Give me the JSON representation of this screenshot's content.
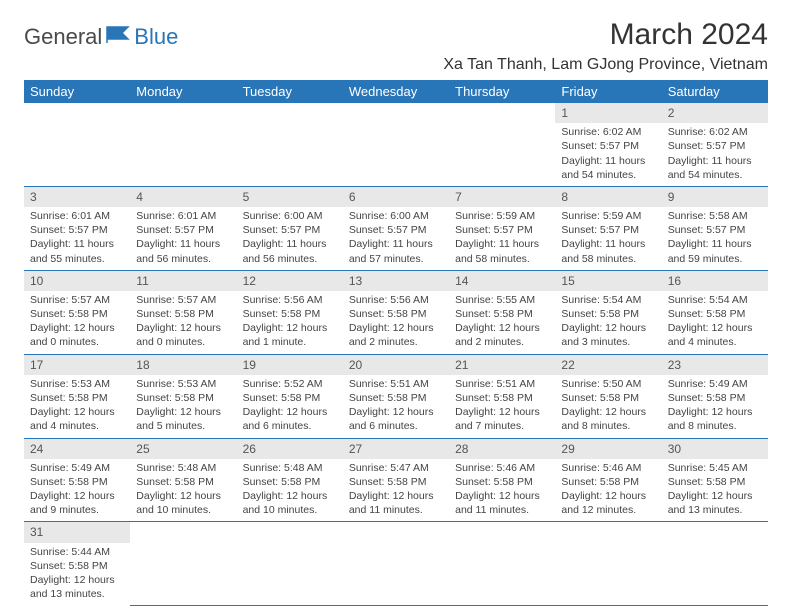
{
  "logo": {
    "general": "General",
    "blue": "Blue"
  },
  "title": "March 2024",
  "location": "Xa Tan Thanh, Lam GJong Province, Vietnam",
  "headers": [
    "Sunday",
    "Monday",
    "Tuesday",
    "Wednesday",
    "Thursday",
    "Friday",
    "Saturday"
  ],
  "colors": {
    "header_bg": "#2876b8",
    "header_text": "#ffffff",
    "daynum_bg": "#e8e8e8",
    "text": "#333333",
    "border": "#2876b8"
  },
  "weeks": [
    [
      null,
      null,
      null,
      null,
      null,
      {
        "n": "1",
        "sr": "Sunrise: 6:02 AM",
        "ss": "Sunset: 5:57 PM",
        "dl": "Daylight: 11 hours and 54 minutes."
      },
      {
        "n": "2",
        "sr": "Sunrise: 6:02 AM",
        "ss": "Sunset: 5:57 PM",
        "dl": "Daylight: 11 hours and 54 minutes."
      }
    ],
    [
      {
        "n": "3",
        "sr": "Sunrise: 6:01 AM",
        "ss": "Sunset: 5:57 PM",
        "dl": "Daylight: 11 hours and 55 minutes."
      },
      {
        "n": "4",
        "sr": "Sunrise: 6:01 AM",
        "ss": "Sunset: 5:57 PM",
        "dl": "Daylight: 11 hours and 56 minutes."
      },
      {
        "n": "5",
        "sr": "Sunrise: 6:00 AM",
        "ss": "Sunset: 5:57 PM",
        "dl": "Daylight: 11 hours and 56 minutes."
      },
      {
        "n": "6",
        "sr": "Sunrise: 6:00 AM",
        "ss": "Sunset: 5:57 PM",
        "dl": "Daylight: 11 hours and 57 minutes."
      },
      {
        "n": "7",
        "sr": "Sunrise: 5:59 AM",
        "ss": "Sunset: 5:57 PM",
        "dl": "Daylight: 11 hours and 58 minutes."
      },
      {
        "n": "8",
        "sr": "Sunrise: 5:59 AM",
        "ss": "Sunset: 5:57 PM",
        "dl": "Daylight: 11 hours and 58 minutes."
      },
      {
        "n": "9",
        "sr": "Sunrise: 5:58 AM",
        "ss": "Sunset: 5:57 PM",
        "dl": "Daylight: 11 hours and 59 minutes."
      }
    ],
    [
      {
        "n": "10",
        "sr": "Sunrise: 5:57 AM",
        "ss": "Sunset: 5:58 PM",
        "dl": "Daylight: 12 hours and 0 minutes."
      },
      {
        "n": "11",
        "sr": "Sunrise: 5:57 AM",
        "ss": "Sunset: 5:58 PM",
        "dl": "Daylight: 12 hours and 0 minutes."
      },
      {
        "n": "12",
        "sr": "Sunrise: 5:56 AM",
        "ss": "Sunset: 5:58 PM",
        "dl": "Daylight: 12 hours and 1 minute."
      },
      {
        "n": "13",
        "sr": "Sunrise: 5:56 AM",
        "ss": "Sunset: 5:58 PM",
        "dl": "Daylight: 12 hours and 2 minutes."
      },
      {
        "n": "14",
        "sr": "Sunrise: 5:55 AM",
        "ss": "Sunset: 5:58 PM",
        "dl": "Daylight: 12 hours and 2 minutes."
      },
      {
        "n": "15",
        "sr": "Sunrise: 5:54 AM",
        "ss": "Sunset: 5:58 PM",
        "dl": "Daylight: 12 hours and 3 minutes."
      },
      {
        "n": "16",
        "sr": "Sunrise: 5:54 AM",
        "ss": "Sunset: 5:58 PM",
        "dl": "Daylight: 12 hours and 4 minutes."
      }
    ],
    [
      {
        "n": "17",
        "sr": "Sunrise: 5:53 AM",
        "ss": "Sunset: 5:58 PM",
        "dl": "Daylight: 12 hours and 4 minutes."
      },
      {
        "n": "18",
        "sr": "Sunrise: 5:53 AM",
        "ss": "Sunset: 5:58 PM",
        "dl": "Daylight: 12 hours and 5 minutes."
      },
      {
        "n": "19",
        "sr": "Sunrise: 5:52 AM",
        "ss": "Sunset: 5:58 PM",
        "dl": "Daylight: 12 hours and 6 minutes."
      },
      {
        "n": "20",
        "sr": "Sunrise: 5:51 AM",
        "ss": "Sunset: 5:58 PM",
        "dl": "Daylight: 12 hours and 6 minutes."
      },
      {
        "n": "21",
        "sr": "Sunrise: 5:51 AM",
        "ss": "Sunset: 5:58 PM",
        "dl": "Daylight: 12 hours and 7 minutes."
      },
      {
        "n": "22",
        "sr": "Sunrise: 5:50 AM",
        "ss": "Sunset: 5:58 PM",
        "dl": "Daylight: 12 hours and 8 minutes."
      },
      {
        "n": "23",
        "sr": "Sunrise: 5:49 AM",
        "ss": "Sunset: 5:58 PM",
        "dl": "Daylight: 12 hours and 8 minutes."
      }
    ],
    [
      {
        "n": "24",
        "sr": "Sunrise: 5:49 AM",
        "ss": "Sunset: 5:58 PM",
        "dl": "Daylight: 12 hours and 9 minutes."
      },
      {
        "n": "25",
        "sr": "Sunrise: 5:48 AM",
        "ss": "Sunset: 5:58 PM",
        "dl": "Daylight: 12 hours and 10 minutes."
      },
      {
        "n": "26",
        "sr": "Sunrise: 5:48 AM",
        "ss": "Sunset: 5:58 PM",
        "dl": "Daylight: 12 hours and 10 minutes."
      },
      {
        "n": "27",
        "sr": "Sunrise: 5:47 AM",
        "ss": "Sunset: 5:58 PM",
        "dl": "Daylight: 12 hours and 11 minutes."
      },
      {
        "n": "28",
        "sr": "Sunrise: 5:46 AM",
        "ss": "Sunset: 5:58 PM",
        "dl": "Daylight: 12 hours and 11 minutes."
      },
      {
        "n": "29",
        "sr": "Sunrise: 5:46 AM",
        "ss": "Sunset: 5:58 PM",
        "dl": "Daylight: 12 hours and 12 minutes."
      },
      {
        "n": "30",
        "sr": "Sunrise: 5:45 AM",
        "ss": "Sunset: 5:58 PM",
        "dl": "Daylight: 12 hours and 13 minutes."
      }
    ],
    [
      {
        "n": "31",
        "sr": "Sunrise: 5:44 AM",
        "ss": "Sunset: 5:58 PM",
        "dl": "Daylight: 12 hours and 13 minutes."
      },
      null,
      null,
      null,
      null,
      null,
      null
    ]
  ]
}
